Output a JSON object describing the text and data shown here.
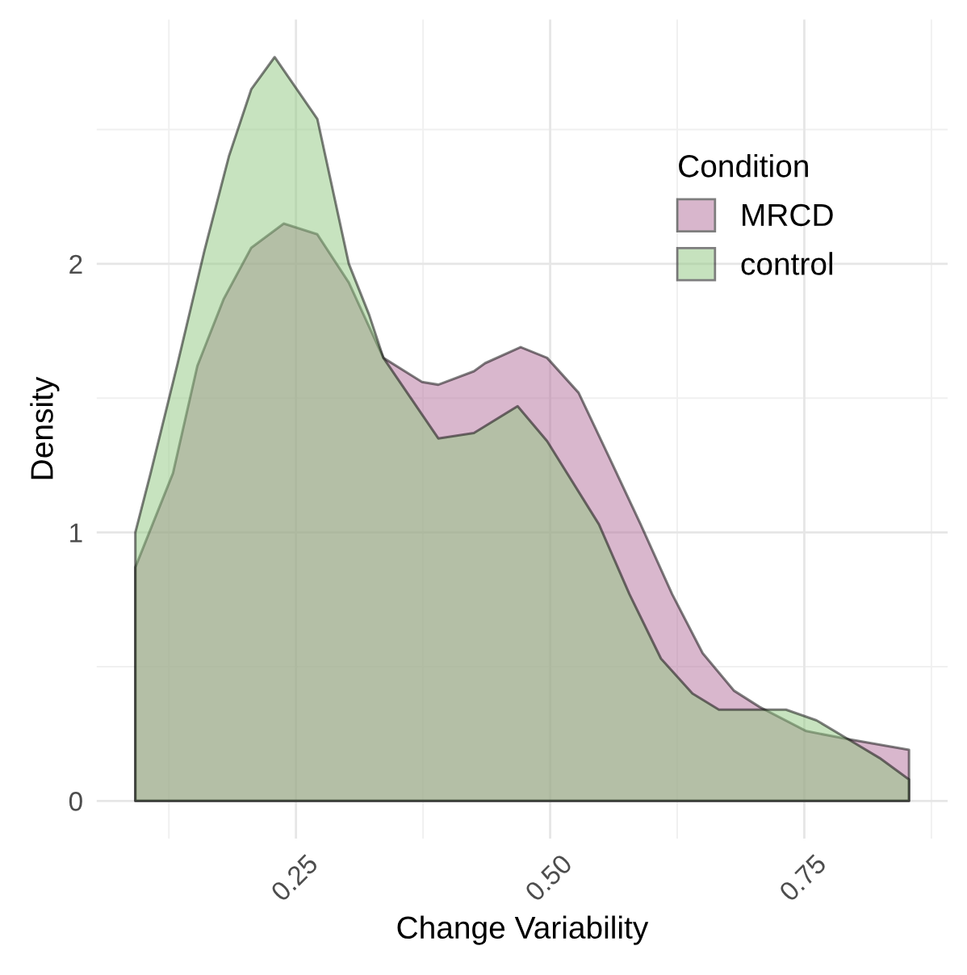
{
  "chart_data": {
    "type": "area",
    "xlabel": "Change Variability",
    "ylabel": "Density",
    "legend_title": "Condition",
    "xlim": [
      0.054,
      0.891
    ],
    "ylim": [
      -0.14,
      2.91
    ],
    "xticks": [
      {
        "value": 0.25,
        "label": "0.25"
      },
      {
        "value": 0.5,
        "label": "0.50"
      },
      {
        "value": 0.75,
        "label": "0.75"
      }
    ],
    "yticks": [
      0,
      1,
      2
    ],
    "grid": true,
    "legend": "right",
    "series": [
      {
        "name": "MRCD",
        "color": "#b36f9b",
        "x": [
          0.092,
          0.129,
          0.153,
          0.179,
          0.206,
          0.238,
          0.271,
          0.302,
          0.336,
          0.374,
          0.39,
          0.425,
          0.436,
          0.471,
          0.497,
          0.528,
          0.558,
          0.589,
          0.62,
          0.65,
          0.681,
          0.706,
          0.752,
          0.793,
          0.853
        ],
        "values": [
          0.87,
          1.22,
          1.62,
          1.87,
          2.06,
          2.15,
          2.11,
          1.93,
          1.65,
          1.56,
          1.55,
          1.6,
          1.63,
          1.69,
          1.65,
          1.52,
          1.28,
          1.03,
          0.77,
          0.55,
          0.41,
          0.35,
          0.26,
          0.23,
          0.19
        ]
      },
      {
        "name": "control",
        "color": "#8fc77f",
        "x": [
          0.092,
          0.107,
          0.133,
          0.16,
          0.184,
          0.206,
          0.229,
          0.271,
          0.302,
          0.322,
          0.336,
          0.39,
          0.425,
          0.468,
          0.497,
          0.548,
          0.578,
          0.609,
          0.64,
          0.666,
          0.701,
          0.732,
          0.762,
          0.793,
          0.824,
          0.853
        ],
        "values": [
          1.0,
          1.22,
          1.62,
          2.05,
          2.4,
          2.65,
          2.77,
          2.54,
          2.0,
          1.81,
          1.65,
          1.35,
          1.37,
          1.47,
          1.34,
          1.03,
          0.77,
          0.53,
          0.4,
          0.34,
          0.34,
          0.34,
          0.3,
          0.23,
          0.16,
          0.08
        ]
      }
    ]
  }
}
